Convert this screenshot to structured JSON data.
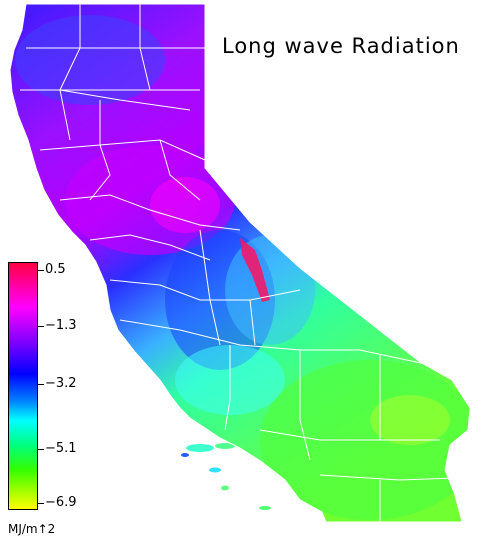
{
  "title": "Long wave Radiation",
  "legend": {
    "unit": "MJ/m↑2",
    "ticks": [
      "0.5",
      "−1.3",
      "−3.2",
      "−5.1",
      "−6.9"
    ],
    "colors": [
      "#ff0044",
      "#ff00ff",
      "#8000ff",
      "#0000ff",
      "#0080ff",
      "#00ffff",
      "#00ff80",
      "#33ff00",
      "#ffff00"
    ]
  }
}
